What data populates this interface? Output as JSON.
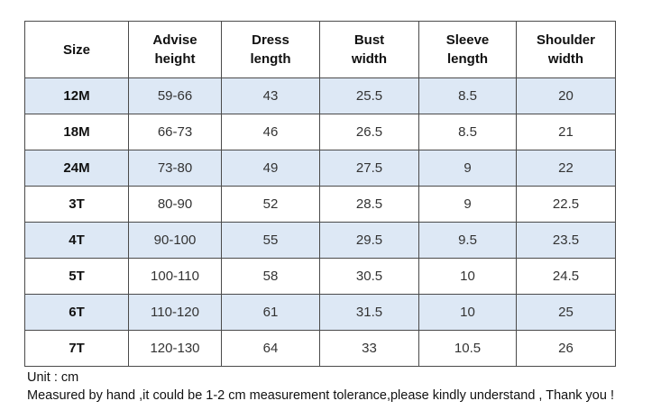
{
  "table": {
    "headers": [
      "Size",
      "Advise\nheight",
      "Dress\nlength",
      "Bust\nwidth",
      "Sleeve\nlength",
      "Shoulder\nwidth"
    ],
    "rows": [
      [
        "12M",
        "59-66",
        "43",
        "25.5",
        "8.5",
        "20"
      ],
      [
        "18M",
        "66-73",
        "46",
        "26.5",
        "8.5",
        "21"
      ],
      [
        "24M",
        "73-80",
        "49",
        "27.5",
        "9",
        "22"
      ],
      [
        "3T",
        "80-90",
        "52",
        "28.5",
        "9",
        "22.5"
      ],
      [
        "4T",
        "90-100",
        "55",
        "29.5",
        "9.5",
        "23.5"
      ],
      [
        "5T",
        "100-110",
        "58",
        "30.5",
        "10",
        "24.5"
      ],
      [
        "6T",
        "110-120",
        "61",
        "31.5",
        "10",
        "25"
      ],
      [
        "7T",
        "120-130",
        "64",
        "33",
        "10.5",
        "26"
      ]
    ]
  },
  "notes": {
    "unit": "Unit : cm",
    "disclaimer": "Measured by hand ,it could be 1-2 cm measurement tolerance,please kindly understand , Thank you !"
  },
  "colors": {
    "row_shade": "#dde8f5",
    "border": "#4a4a4a"
  }
}
